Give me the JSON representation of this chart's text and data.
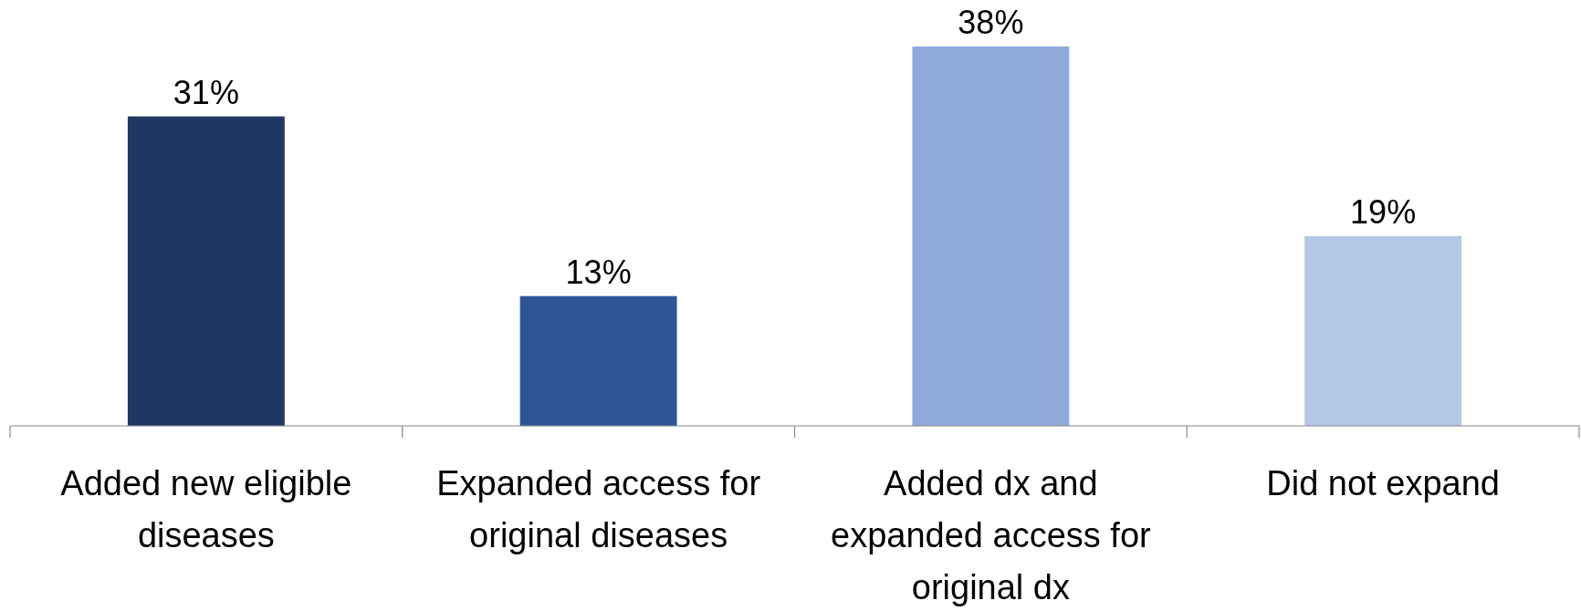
{
  "chart_data": {
    "type": "bar",
    "categories": [
      "Added new eligible diseases",
      "Expanded access for original diseases",
      "Added dx and expanded access for original dx",
      "Did not expand"
    ],
    "values": [
      31,
      13,
      38,
      19
    ],
    "colors": [
      "#203864",
      "#2f5597",
      "#8faadc",
      "#b4c7e7"
    ],
    "value_labels": [
      "31%",
      "13%",
      "38%",
      "19%"
    ]
  }
}
